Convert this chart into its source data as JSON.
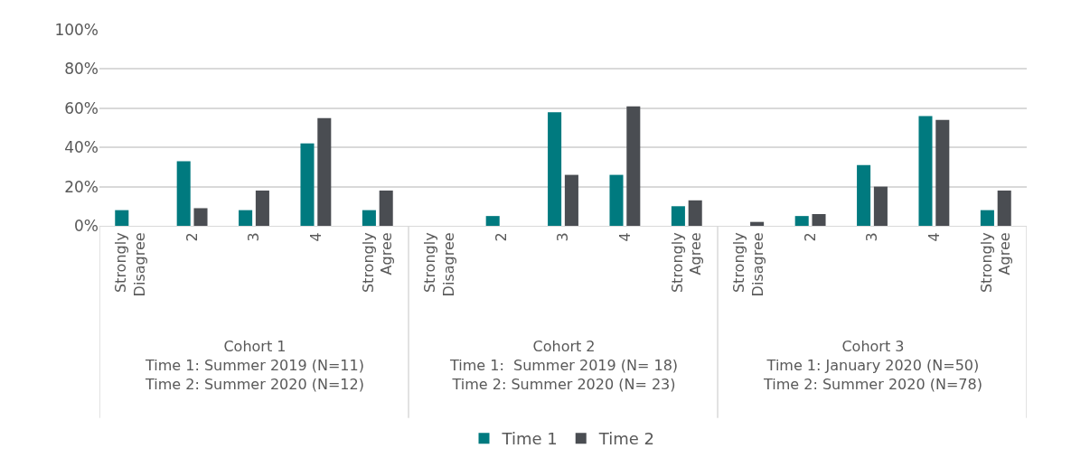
{
  "chart_data": {
    "type": "bar",
    "categories": [
      "Strongly Disagree",
      "2",
      "3",
      "4",
      "Strongly Agree",
      "Strongly Disagree",
      "2",
      "3",
      "4",
      "Strongly Agree",
      "Strongly Disagree",
      "2",
      "3",
      "4",
      "Strongly Agree"
    ],
    "series": [
      {
        "name": "Time 1",
        "color": "#007a7f",
        "values": [
          8,
          33,
          8,
          42,
          8,
          0,
          5,
          58,
          26,
          10,
          0,
          5,
          31,
          56,
          8
        ]
      },
      {
        "name": "Time 2",
        "color": "#4a4d52",
        "values": [
          0,
          9,
          18,
          55,
          18,
          0,
          0,
          26,
          61,
          13,
          2,
          6,
          20,
          54,
          18
        ]
      }
    ],
    "ylim": [
      0,
      100
    ],
    "yticks": [
      {
        "value": 0,
        "label": "0%"
      },
      {
        "value": 20,
        "label": "20%"
      },
      {
        "value": 40,
        "label": "40%"
      },
      {
        "value": 60,
        "label": "60%"
      },
      {
        "value": 80,
        "label": "80%"
      },
      {
        "value": 100,
        "label": "100%"
      }
    ],
    "grid": "y",
    "legend": "bottom",
    "annotations": [
      "Cohort 1\nTime 1: Summer 2019 (N=11)\nTime 2: Summer 2020 (N=12)",
      "Cohort 2\nTime 1:  Summer 2019 (N= 18)\nTime 2: Summer 2020 (N= 23)",
      "Cohort 3\nTime 1: January 2020 (N=50)\nTime 2: Summer 2020 (N=78)"
    ]
  }
}
